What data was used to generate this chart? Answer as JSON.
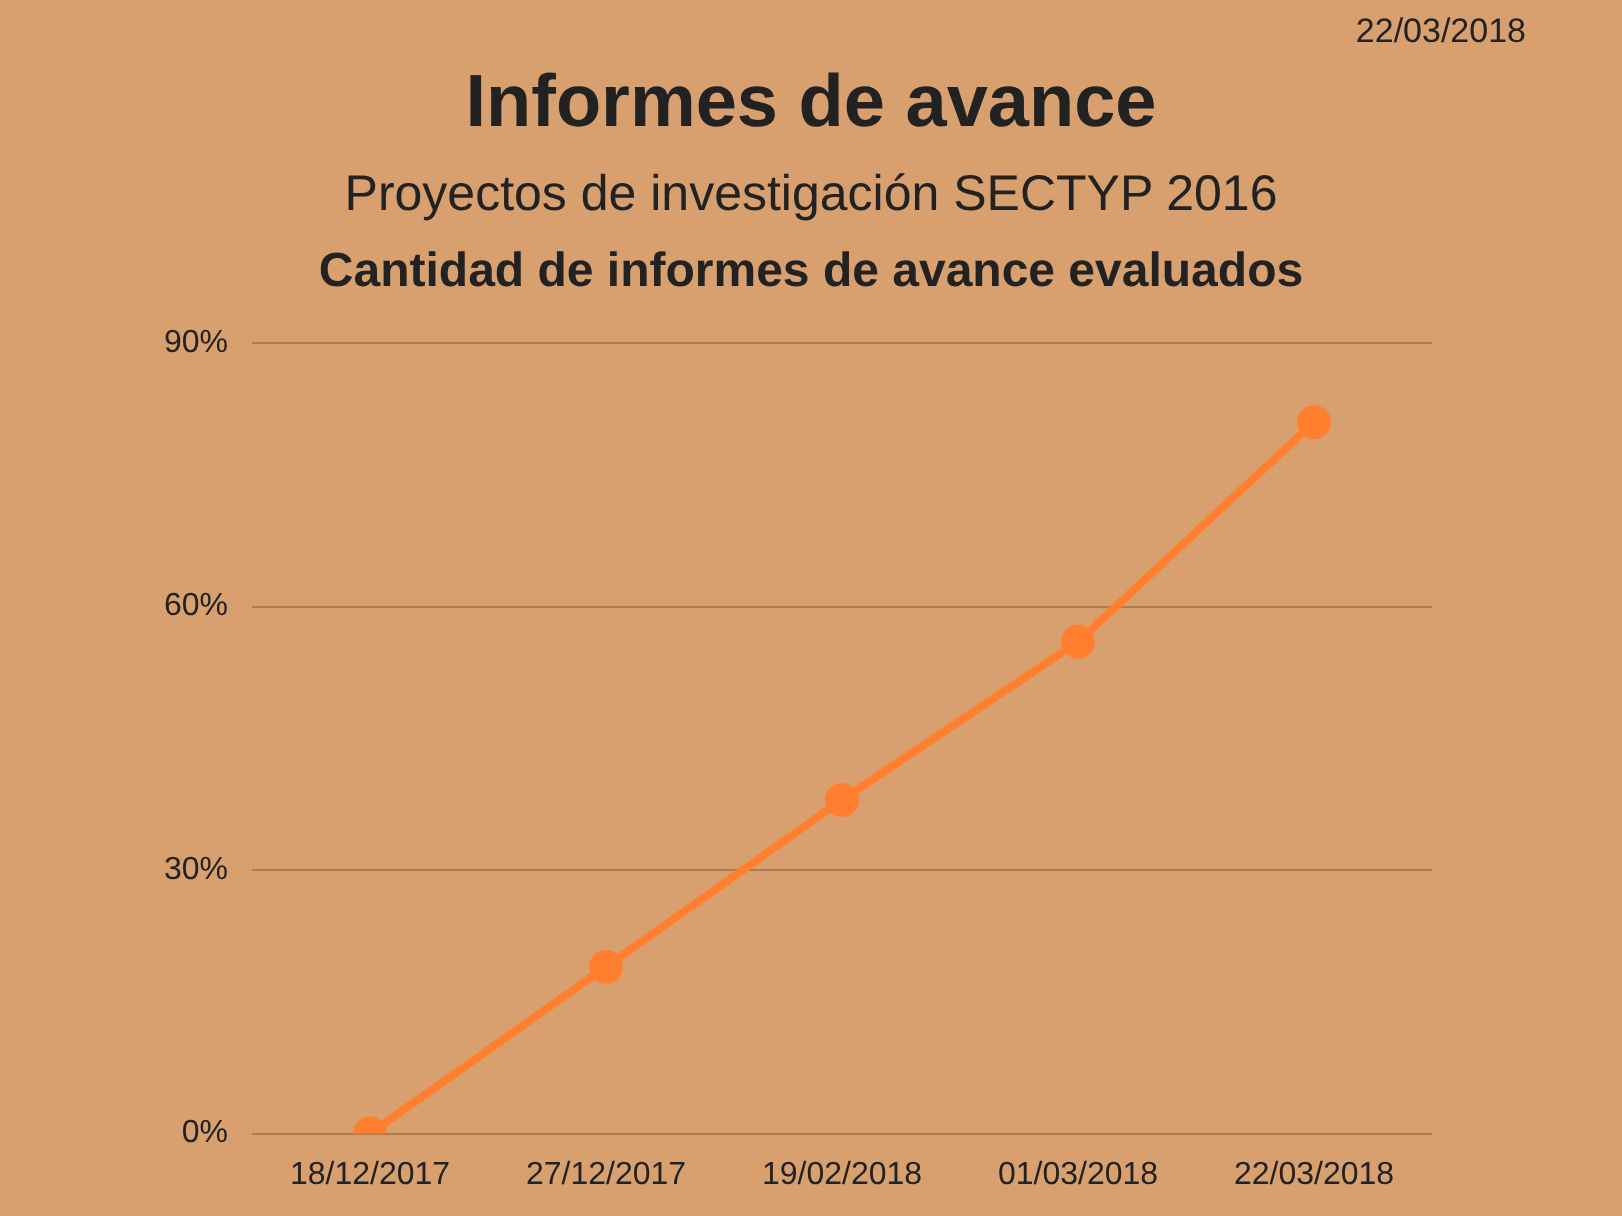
{
  "chart_data": {
    "type": "line",
    "title": "Informes de avance",
    "subtitle": "Proyectos de investigación SECTYP 2016",
    "annotations": [
      "22/03/2018",
      "Cantidad de informes de avance evaluados"
    ],
    "categories": [
      "18/12/2017",
      "27/12/2017",
      "19/02/2018",
      "01/03/2018",
      "22/03/2018"
    ],
    "series": [
      {
        "color": "#ff7f2f",
        "values": [
          0,
          19,
          38,
          56,
          81
        ]
      }
    ],
    "ylim": [
      0,
      90
    ],
    "yticks": [
      {
        "value": 0,
        "label": "0%"
      },
      {
        "value": 30,
        "label": "30%"
      },
      {
        "value": 60,
        "label": "60%"
      },
      {
        "value": 90,
        "label": "90%"
      }
    ],
    "grid": "y",
    "legend": false,
    "marker": "circle",
    "line_style": "solid"
  }
}
